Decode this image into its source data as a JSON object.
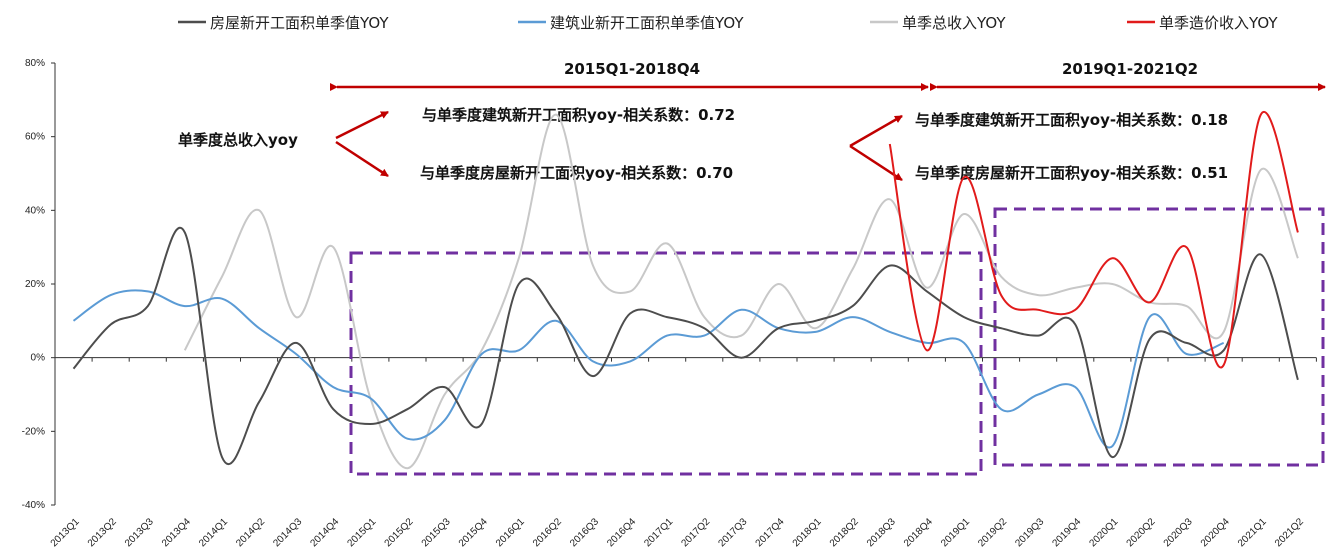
{
  "chart_data": {
    "type": "line",
    "ylim": [
      -40,
      80
    ],
    "yticks": [
      "80%",
      "60%",
      "40%",
      "20%",
      "0%",
      "-20%",
      "-40%"
    ],
    "ytick_values": [
      80,
      60,
      40,
      20,
      0,
      -20,
      -40
    ],
    "categories": [
      "2013Q1",
      "2013Q2",
      "2013Q3",
      "2013Q4",
      "2014Q1",
      "2014Q2",
      "2014Q3",
      "2014Q4",
      "2015Q1",
      "2015Q2",
      "2015Q3",
      "2015Q4",
      "2016Q1",
      "2016Q2",
      "2016Q3",
      "2016Q4",
      "2017Q1",
      "2017Q2",
      "2017Q3",
      "2017Q4",
      "2018Q1",
      "2018Q2",
      "2018Q3",
      "2018Q4",
      "2019Q1",
      "2019Q2",
      "2019Q3",
      "2019Q4",
      "2020Q1",
      "2020Q2",
      "2020Q3",
      "2020Q4",
      "2021Q1",
      "2021Q2"
    ],
    "series": [
      {
        "name": "房屋新开工面积单季值YOY",
        "color": "#4d4d4d",
        "values": [
          -3,
          9,
          14,
          34,
          -27,
          -12,
          4,
          -14,
          -18,
          -14,
          -8,
          -18,
          20,
          12,
          -5,
          12,
          11,
          8,
          0,
          8,
          10,
          14,
          25,
          18,
          11,
          8,
          6,
          9,
          -27,
          5,
          4,
          2,
          28,
          -6
        ]
      },
      {
        "name": "建筑业新开工面积单季值YOY",
        "color": "#5b9bd5",
        "values": [
          10,
          17,
          18,
          14,
          16,
          8,
          1,
          -8,
          -11,
          -22,
          -17,
          1,
          2,
          10,
          -1,
          -1,
          6,
          6,
          13,
          8,
          7,
          11,
          7,
          4,
          4,
          -14,
          -10,
          -8,
          -24,
          11,
          1,
          4,
          null,
          null
        ]
      },
      {
        "name": "单季总收入YOY",
        "color": "#c8c8c8",
        "values": [
          null,
          null,
          null,
          2,
          22,
          40,
          11,
          30,
          -11,
          -30,
          -10,
          2,
          27,
          66,
          25,
          18,
          31,
          11,
          6,
          20,
          8,
          24,
          43,
          19,
          39,
          22,
          17,
          19,
          20,
          15,
          14,
          7,
          51,
          27
        ]
      },
      {
        "name": "单季造价收入YOY",
        "color": "#e11b1b",
        "values": [
          null,
          null,
          null,
          null,
          null,
          null,
          null,
          null,
          null,
          null,
          null,
          null,
          null,
          null,
          null,
          null,
          null,
          null,
          null,
          null,
          null,
          null,
          58,
          2,
          49,
          17,
          13,
          13,
          27,
          15,
          30,
          -2,
          66,
          34
        ]
      }
    ],
    "annotations": {
      "period1": "2015Q1-2018Q4",
      "period2": "2019Q1-2021Q2",
      "left_label": "单季度总收入yoy",
      "corr1": "与单季度建筑新开工面积yoy-相关系数：0.72",
      "corr2": "与单季度房屋新开工面积yoy-相关系数：0.70",
      "corr3": "与单季度建筑新开工面积yoy-相关系数：0.18",
      "corr4": "与单季度房屋新开工面积yoy-相关系数：0.51"
    },
    "accent_colors": {
      "arrow": "#c00000",
      "box": "#7030a0"
    },
    "grid": false,
    "legend_position": "top"
  }
}
